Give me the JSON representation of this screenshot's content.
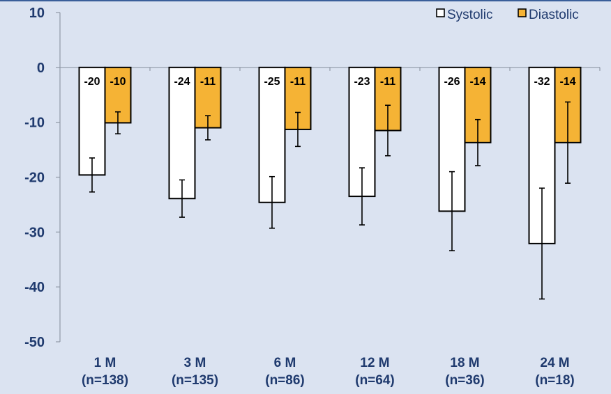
{
  "chart_data": {
    "type": "bar",
    "categories": [
      "1 M",
      "3 M",
      "6 M",
      "12 M",
      "18 M",
      "24 M"
    ],
    "category_sublabels": [
      "(n=138)",
      "(n=135)",
      "(n=86)",
      "(n=64)",
      "(n=36)",
      "(n=18)"
    ],
    "series": [
      {
        "name": "Systolic",
        "color": "#ffffff",
        "values": [
          -19.6,
          -23.9,
          -24.6,
          -23.5,
          -26.2,
          -32.1
        ],
        "labels": [
          "-20",
          "-24",
          "-25",
          "-23",
          "-26",
          "-32"
        ],
        "error": [
          3.1,
          3.4,
          4.7,
          5.2,
          7.2,
          10.1
        ]
      },
      {
        "name": "Diastolic",
        "color": "#f5b335",
        "values": [
          -10.1,
          -11.0,
          -11.3,
          -11.5,
          -13.7,
          -13.7
        ],
        "labels": [
          "-10",
          "-11",
          "-11",
          "-11",
          "-14",
          "-14"
        ],
        "error": [
          2.0,
          2.2,
          3.1,
          4.6,
          4.2,
          7.4
        ]
      }
    ],
    "ylim": [
      -50,
      10
    ],
    "yticks": [
      10,
      0,
      -10,
      -20,
      -30,
      -40,
      -50
    ],
    "xlabel": "",
    "ylabel": "",
    "legend": "top-right",
    "grid": false
  }
}
